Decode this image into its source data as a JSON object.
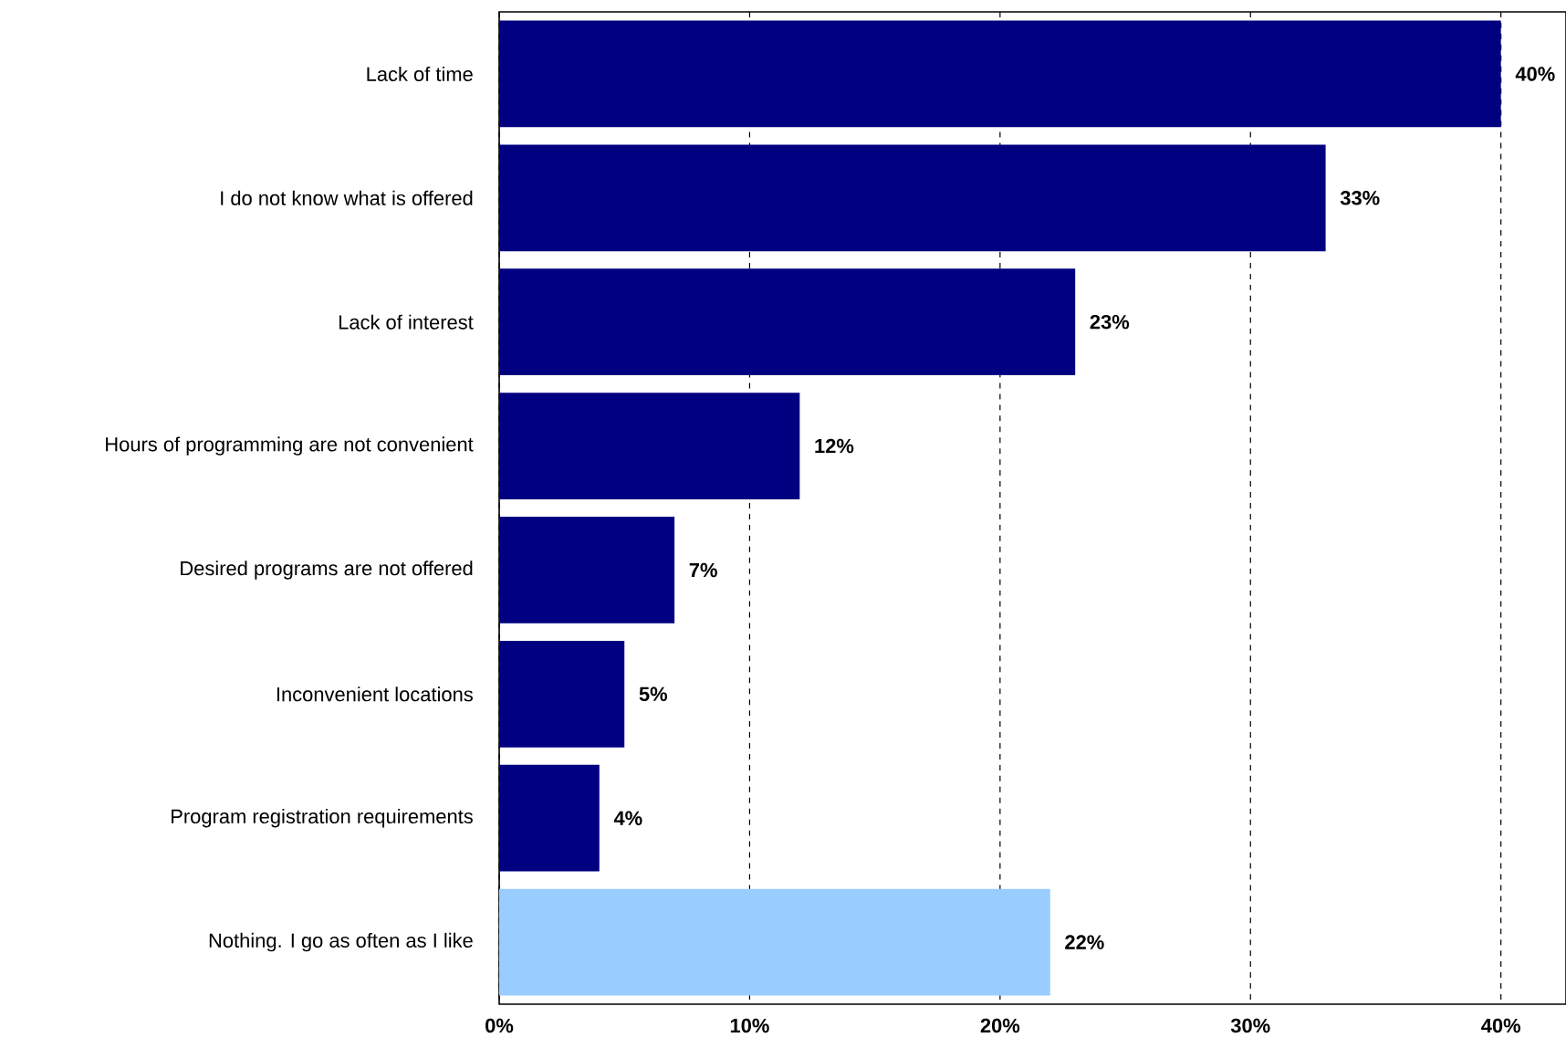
{
  "chart_data": {
    "type": "bar",
    "orientation": "horizontal",
    "categories": [
      "Lack of time",
      "I do not know what is offered",
      "Lack of interest",
      "Hours of programming are not convenient",
      "Desired programs are not offered",
      "Inconvenient locations",
      "Program registration requirements",
      "Nothing. I go as often as I like"
    ],
    "values": [
      40,
      33,
      23,
      12,
      7,
      5,
      4,
      22
    ],
    "value_labels": [
      "40%",
      "33%",
      "23%",
      "12%",
      "7%",
      "5%",
      "4%",
      "22%"
    ],
    "colors": [
      "#000080",
      "#000080",
      "#000080",
      "#000080",
      "#000080",
      "#000080",
      "#000080",
      "#99ccff"
    ],
    "xlim": [
      0,
      42.6
    ],
    "xticks": [
      {
        "value": 0,
        "label": "0%"
      },
      {
        "value": 10,
        "label": "10%"
      },
      {
        "value": 20,
        "label": "20%"
      },
      {
        "value": 30,
        "label": "30%"
      },
      {
        "value": 40,
        "label": "40%"
      }
    ],
    "grid": "x"
  }
}
